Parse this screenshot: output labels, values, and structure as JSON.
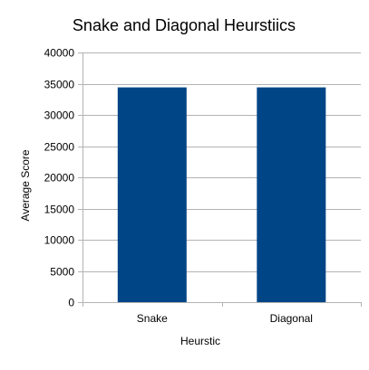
{
  "chart_data": {
    "type": "bar",
    "title": "Snake and Diagonal Heurstiics",
    "xlabel": "Heurstic",
    "ylabel": "Average Score",
    "categories": [
      "Snake",
      "Diagonal"
    ],
    "values": [
      34400,
      34400
    ],
    "ylim": [
      0,
      40000
    ],
    "yticks": [
      "0",
      "5000",
      "10000",
      "15000",
      "20000",
      "25000",
      "30000",
      "35000",
      "40000"
    ],
    "grid": true,
    "legend": "none",
    "bar_color": "#004586",
    "grid_color": "#b3b3b3"
  }
}
